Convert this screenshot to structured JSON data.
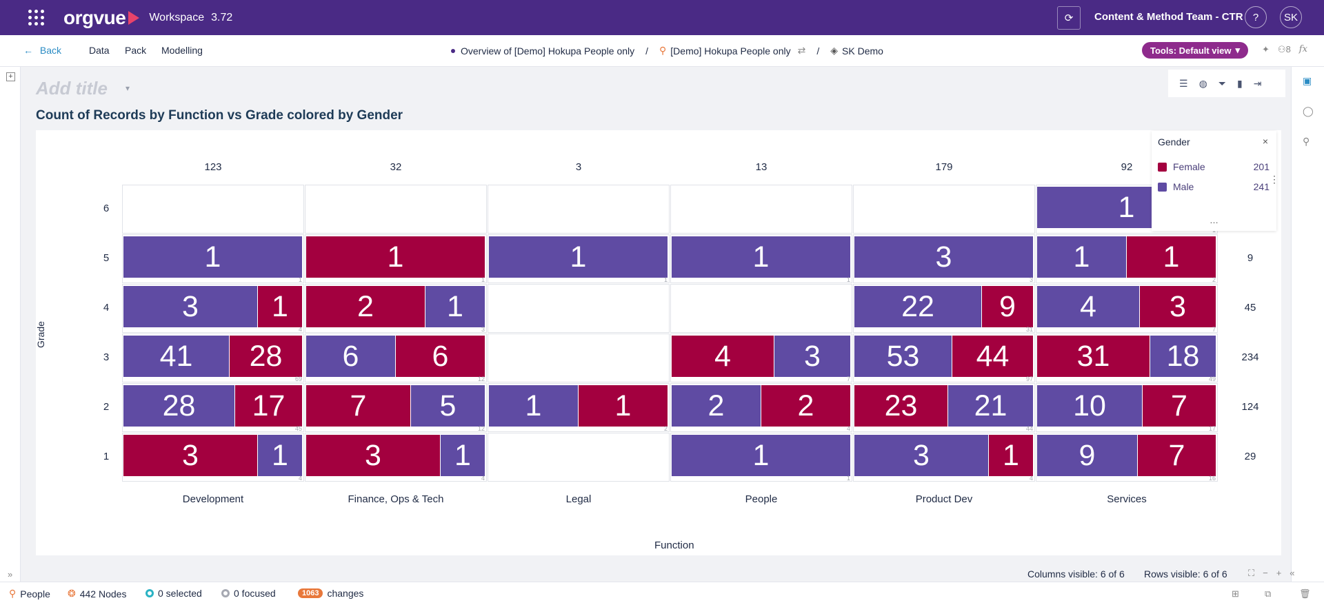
{
  "app": {
    "product_name": "orgvue",
    "workspace_label": "Workspace",
    "version": "3.72",
    "team_name": "Content & Method Team - CTR",
    "help_label": "?",
    "avatar_initials": "SK"
  },
  "nav": {
    "back_label": "Back",
    "items": [
      "Data",
      "Pack",
      "Modelling"
    ],
    "breadcrumb": {
      "view": "Overview of [Demo] Hokupa People only",
      "dataset": "[Demo] Hokupa People only",
      "scenario": "SK Demo",
      "separator": "/"
    },
    "tools_label": "Tools: Default view",
    "people_count": "8",
    "fx_label": "fx"
  },
  "canvas": {
    "add_title_placeholder": "Add title",
    "chart_title": "Count of Records by Function vs Grade colored by Gender"
  },
  "colors": {
    "Female": "#a3003f",
    "Male": "#5f4ba3"
  },
  "chart_data": {
    "type": "matrix",
    "x_axis_label": "Function",
    "y_axis_label": "Grade",
    "columns": [
      "Development",
      "Finance, Ops & Tech",
      "Legal",
      "People",
      "Product Dev",
      "Services"
    ],
    "column_totals": [
      "123",
      "32",
      "3",
      "13",
      "179",
      "92"
    ],
    "rows": [
      "6",
      "5",
      "4",
      "3",
      "2",
      "1"
    ],
    "row_totals": [
      "",
      "9",
      "45",
      "234",
      "124",
      "29"
    ],
    "cells": [
      [
        {
          "total": null,
          "segments": []
        },
        {
          "total": null,
          "segments": []
        },
        {
          "total": null,
          "segments": []
        },
        {
          "total": null,
          "segments": []
        },
        {
          "total": null,
          "segments": []
        },
        {
          "total": 1,
          "segments": [
            {
              "gender": "Male",
              "value": 1
            }
          ]
        }
      ],
      [
        {
          "total": 1,
          "segments": [
            {
              "gender": "Male",
              "value": 1
            }
          ]
        },
        {
          "total": 1,
          "segments": [
            {
              "gender": "Female",
              "value": 1
            }
          ]
        },
        {
          "total": 1,
          "segments": [
            {
              "gender": "Male",
              "value": 1
            }
          ]
        },
        {
          "total": 1,
          "segments": [
            {
              "gender": "Male",
              "value": 1
            }
          ]
        },
        {
          "total": 3,
          "segments": [
            {
              "gender": "Male",
              "value": 3
            }
          ]
        },
        {
          "total": 2,
          "segments": [
            {
              "gender": "Male",
              "value": 1
            },
            {
              "gender": "Female",
              "value": 1
            }
          ]
        }
      ],
      [
        {
          "total": 4,
          "segments": [
            {
              "gender": "Male",
              "value": 3
            },
            {
              "gender": "Female",
              "value": 1
            }
          ]
        },
        {
          "total": 3,
          "segments": [
            {
              "gender": "Female",
              "value": 2
            },
            {
              "gender": "Male",
              "value": 1
            }
          ]
        },
        {
          "total": null,
          "segments": []
        },
        {
          "total": null,
          "segments": []
        },
        {
          "total": 31,
          "segments": [
            {
              "gender": "Male",
              "value": 22
            },
            {
              "gender": "Female",
              "value": 9
            }
          ]
        },
        {
          "total": 7,
          "segments": [
            {
              "gender": "Male",
              "value": 4
            },
            {
              "gender": "Female",
              "value": 3
            }
          ]
        }
      ],
      [
        {
          "total": 69,
          "segments": [
            {
              "gender": "Male",
              "value": 41
            },
            {
              "gender": "Female",
              "value": 28
            }
          ]
        },
        {
          "total": 12,
          "segments": [
            {
              "gender": "Male",
              "value": 6
            },
            {
              "gender": "Female",
              "value": 6
            }
          ]
        },
        {
          "total": null,
          "segments": []
        },
        {
          "total": 7,
          "segments": [
            {
              "gender": "Female",
              "value": 4
            },
            {
              "gender": "Male",
              "value": 3
            }
          ]
        },
        {
          "total": 97,
          "segments": [
            {
              "gender": "Male",
              "value": 53
            },
            {
              "gender": "Female",
              "value": 44
            }
          ]
        },
        {
          "total": 49,
          "segments": [
            {
              "gender": "Female",
              "value": 31
            },
            {
              "gender": "Male",
              "value": 18
            }
          ]
        }
      ],
      [
        {
          "total": 45,
          "segments": [
            {
              "gender": "Male",
              "value": 28
            },
            {
              "gender": "Female",
              "value": 17
            }
          ]
        },
        {
          "total": 12,
          "segments": [
            {
              "gender": "Female",
              "value": 7
            },
            {
              "gender": "Male",
              "value": 5
            }
          ]
        },
        {
          "total": 2,
          "segments": [
            {
              "gender": "Male",
              "value": 1
            },
            {
              "gender": "Female",
              "value": 1
            }
          ]
        },
        {
          "total": 4,
          "segments": [
            {
              "gender": "Male",
              "value": 2
            },
            {
              "gender": "Female",
              "value": 2
            }
          ]
        },
        {
          "total": 44,
          "segments": [
            {
              "gender": "Female",
              "value": 23
            },
            {
              "gender": "Male",
              "value": 21
            }
          ]
        },
        {
          "total": 17,
          "segments": [
            {
              "gender": "Male",
              "value": 10
            },
            {
              "gender": "Female",
              "value": 7
            }
          ]
        }
      ],
      [
        {
          "total": 4,
          "segments": [
            {
              "gender": "Female",
              "value": 3
            },
            {
              "gender": "Male",
              "value": 1
            }
          ]
        },
        {
          "total": 4,
          "segments": [
            {
              "gender": "Female",
              "value": 3
            },
            {
              "gender": "Male",
              "value": 1
            }
          ]
        },
        {
          "total": null,
          "segments": []
        },
        {
          "total": 1,
          "segments": [
            {
              "gender": "Male",
              "value": 1
            }
          ]
        },
        {
          "total": 4,
          "segments": [
            {
              "gender": "Male",
              "value": 3
            },
            {
              "gender": "Female",
              "value": 1
            }
          ]
        },
        {
          "total": 16,
          "segments": [
            {
              "gender": "Male",
              "value": 9
            },
            {
              "gender": "Female",
              "value": 7
            }
          ]
        }
      ]
    ],
    "legend": {
      "title": "Gender",
      "items": [
        {
          "label": "Female",
          "count": "201"
        },
        {
          "label": "Male",
          "count": "241"
        }
      ]
    }
  },
  "status": {
    "columns_visible": "Columns visible: 6 of 6",
    "rows_visible": "Rows visible: 6 of 6"
  },
  "footer": {
    "entity": "People",
    "nodes": "442 Nodes",
    "selected": "0 selected",
    "focused": "0 focused",
    "changes_count": "1063",
    "changes_label": "changes"
  }
}
